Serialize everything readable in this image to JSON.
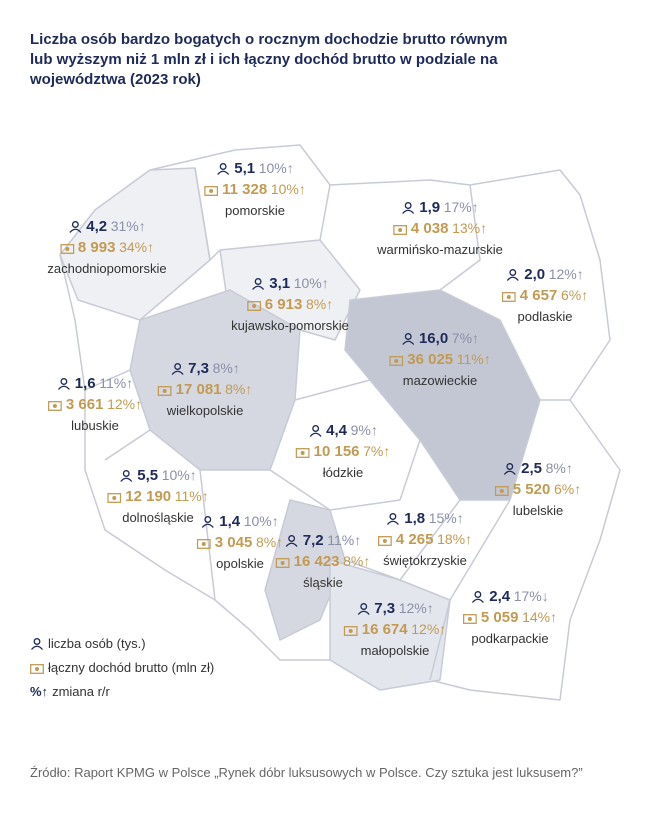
{
  "title": {
    "lines": [
      "Liczba osób bardzo bogatych o rocznym dochodzie brutto równym",
      "lub wyższym niż 1 mln zł i ich łączny dochód brutto w podziale na",
      "województwa (2023 rok)"
    ]
  },
  "regions": [
    {
      "name": "pomorskie",
      "people": "5,1",
      "people_change": "10%↑",
      "income": "11 328",
      "income_change": "10%↑"
    },
    {
      "name": "zachodniopomorskie",
      "people": "4,2",
      "people_change": "31%↑",
      "income": "8 993",
      "income_change": "34%↑"
    },
    {
      "name": "warmińsko-mazurskie",
      "people": "1,9",
      "people_change": "17%↑",
      "income": "4 038",
      "income_change": "13%↑"
    },
    {
      "name": "podlaskie",
      "people": "2,0",
      "people_change": "12%↑",
      "income": "4 657",
      "income_change": "6%↑"
    },
    {
      "name": "kujawsko-pomorskie",
      "people": "3,1",
      "people_change": "10%↑",
      "income": "6 913",
      "income_change": "8%↑"
    },
    {
      "name": "mazowieckie",
      "people": "16,0",
      "people_change": "7%↑",
      "income": "36 025",
      "income_change": "11%↑"
    },
    {
      "name": "lubuskie",
      "people": "1,6",
      "people_change": "11%↑",
      "income": "3 661",
      "income_change": "12%↑"
    },
    {
      "name": "wielkopolskie",
      "people": "7,3",
      "people_change": "8%↑",
      "income": "17 081",
      "income_change": "8%↑"
    },
    {
      "name": "łódzkie",
      "people": "4,4",
      "people_change": "9%↑",
      "income": "10 156",
      "income_change": "7%↑"
    },
    {
      "name": "dolnośląskie",
      "people": "5,5",
      "people_change": "10%↑",
      "income": "12 190",
      "income_change": "11%↑"
    },
    {
      "name": "lubelskie",
      "people": "2,5",
      "people_change": "8%↑",
      "income": "5 520",
      "income_change": "6%↑"
    },
    {
      "name": "opolskie",
      "people": "1,4",
      "people_change": "10%↑",
      "income": "3 045",
      "income_change": "8%↑"
    },
    {
      "name": "śląskie",
      "people": "7,2",
      "people_change": "11%↑",
      "income": "16 423",
      "income_change": "8%↑"
    },
    {
      "name": "świętokrzyskie",
      "people": "1,8",
      "people_change": "15%↑",
      "income": "4 265",
      "income_change": "18%↑"
    },
    {
      "name": "małopolskie",
      "people": "7,3",
      "people_change": "12%↑",
      "income": "16 674",
      "income_change": "12%↑"
    },
    {
      "name": "podkarpackie",
      "people": "2,4",
      "people_change": "17%↓",
      "income": "5 059",
      "income_change": "14%↑"
    }
  ],
  "legend": {
    "people": "liczba osób (tys.)",
    "income": "łączny dochód brutto (mln zł)",
    "change_symbol": "%↑",
    "change": "zmiana r/r"
  },
  "source": "Źródło: Raport KPMG w Polsce „Rynek dóbr luksusowych w Polsce. Czy sztuka jest luksusem?”"
}
